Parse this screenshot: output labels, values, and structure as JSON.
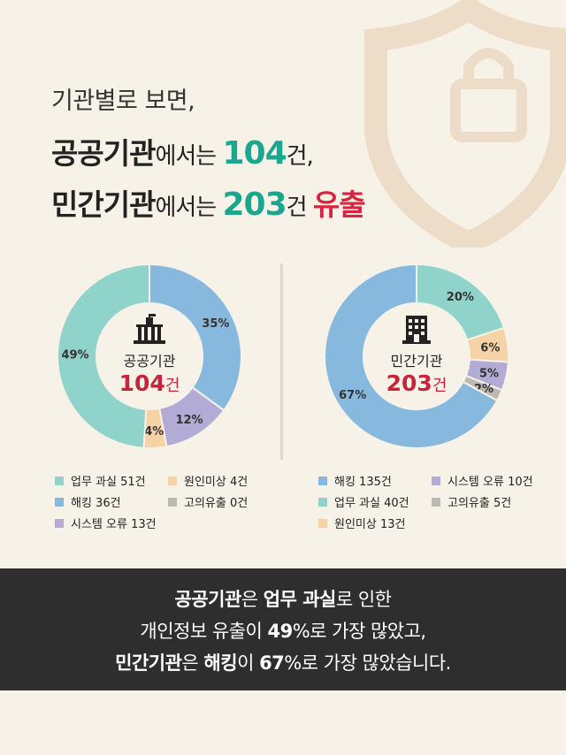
{
  "headline": {
    "line1": "기관별로 보면,",
    "line2_bold": "공공기관",
    "line2_mid": "에서는 ",
    "line2_num": "104",
    "line2_end": "건,",
    "line3_bold": "민간기관",
    "line3_mid": "에서는 ",
    "line3_num": "203",
    "line3_unit": "건 ",
    "line3_end": "유출"
  },
  "colors": {
    "teal_light": "#8fd3cb",
    "blue": "#86b9dd",
    "purple": "#b2abd6",
    "peach": "#f6d3a6",
    "gray": "#bdb8b1",
    "accent_teal": "#1aa78f",
    "accent_red": "#d9243f",
    "banner_bg": "#2e2e2e"
  },
  "chart_data": [
    {
      "type": "pie",
      "center_label": "공공기관",
      "center_count": "104",
      "center_unit": "건",
      "icon": "government-building-icon",
      "slices": [
        {
          "label": "해킹 36건",
          "value": 35,
          "pct_label": "35%",
          "color": "#86b9dd"
        },
        {
          "label": "시스템 오류 13건",
          "value": 12,
          "pct_label": "12%",
          "color": "#b2abd6"
        },
        {
          "label": "원인미상 4건",
          "value": 4,
          "pct_label": "4%",
          "color": "#f6d3a6"
        },
        {
          "label": "업무 과실 51건",
          "value": 49,
          "pct_label": "49%",
          "color": "#8fd3cb"
        }
      ],
      "legend": [
        {
          "label": "업무 과실 51건",
          "color": "#8fd3cb"
        },
        {
          "label": "원인미상 4건",
          "color": "#f6d3a6"
        },
        {
          "label": "해킹 36건",
          "color": "#86b9dd"
        },
        {
          "label": "고의유출 0건",
          "color": "#bdb8b1"
        },
        {
          "label": "시스템 오류 13건",
          "color": "#b2abd6"
        }
      ]
    },
    {
      "type": "pie",
      "center_label": "민간기관",
      "center_count": "203",
      "center_unit": "건",
      "icon": "office-building-icon",
      "slices": [
        {
          "label": "업무 과실 40건",
          "value": 20,
          "pct_label": "20%",
          "color": "#8fd3cb"
        },
        {
          "label": "원인미상 13건",
          "value": 6,
          "pct_label": "6%",
          "color": "#f6d3a6"
        },
        {
          "label": "시스템 오류 10건",
          "value": 5,
          "pct_label": "5%",
          "color": "#b2abd6"
        },
        {
          "label": "고의유출 5건",
          "value": 2,
          "pct_label": "2%",
          "color": "#bdb8b1"
        },
        {
          "label": "해킹 135건",
          "value": 67,
          "pct_label": "67%",
          "color": "#86b9dd"
        }
      ],
      "legend": [
        {
          "label": "해킹 135건",
          "color": "#86b9dd"
        },
        {
          "label": "시스템 오류 10건",
          "color": "#b2abd6"
        },
        {
          "label": "업무 과실 40건",
          "color": "#8fd3cb"
        },
        {
          "label": "고의유출 5건",
          "color": "#bdb8b1"
        },
        {
          "label": "원인미상 13건",
          "color": "#f6d3a6"
        }
      ]
    }
  ],
  "banner": {
    "l1_b1": "공공기관",
    "l1_t1": "은 ",
    "l1_b2": "업무 과실",
    "l1_t2": "로 인한",
    "l2_t1": "개인정보 유출이 ",
    "l2_b1": "49",
    "l2_t2": "%로 가장 많았고,",
    "l3_b1": "민간기관",
    "l3_t1": "은 ",
    "l3_b2": "해킹",
    "l3_t2": "이 ",
    "l3_b3": "67",
    "l3_t3": "%로 가장 많았습니다."
  }
}
